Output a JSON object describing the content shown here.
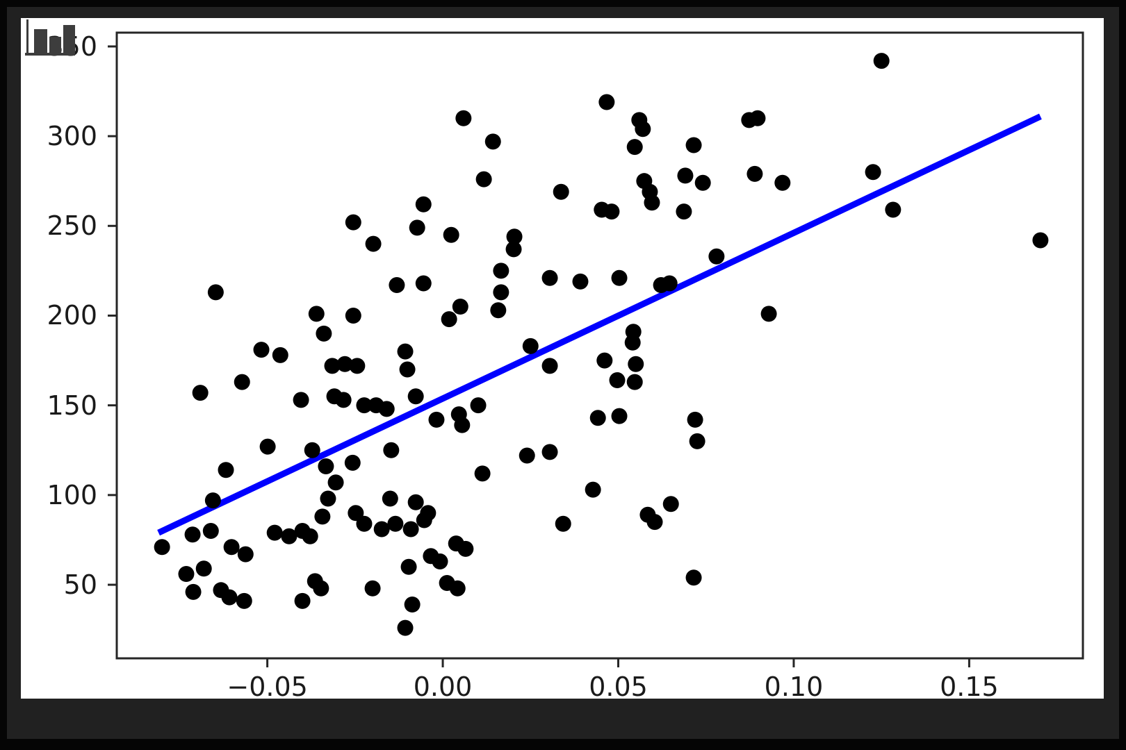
{
  "figure": {
    "icon": "bar-chart-icon",
    "colors": {
      "figure_bg": "#ffffff",
      "surround": "#212121",
      "edge": "#050505",
      "icon": "#3d3d3d",
      "text": "#1a1a1a",
      "spine": "#262626"
    }
  },
  "chart_data": {
    "type": "scatter",
    "title": "",
    "xlabel": "",
    "ylabel": "",
    "grid": false,
    "legend": null,
    "xlim": [
      -0.0929,
      0.1824
    ],
    "ylim": [
      9,
      357.7
    ],
    "x_ticks": [
      -0.05,
      0.0,
      0.05,
      0.1,
      0.15
    ],
    "x_tick_labels": [
      "−0.05",
      "0.00",
      "0.05",
      "0.10",
      "0.15"
    ],
    "y_ticks": [
      350,
      300,
      250,
      200,
      150,
      100,
      50
    ],
    "y_tick_labels": [
      "350",
      "300",
      "250",
      "200",
      "150",
      "100",
      "50"
    ],
    "point_color": "#000000",
    "line_color": "#0000ff",
    "regression_line": {
      "x1": -0.081,
      "y1": 79,
      "x2": 0.1703,
      "y2": 311
    },
    "points": [
      [
        -0.0255,
        252
      ],
      [
        -0.0647,
        213
      ],
      [
        -0.036,
        201
      ],
      [
        -0.0255,
        200
      ],
      [
        -0.0339,
        190
      ],
      [
        -0.0517,
        181
      ],
      [
        0.0059,
        310
      ],
      [
        0.0143,
        297
      ],
      [
        0.0117,
        276
      ],
      [
        -0.0055,
        262
      ],
      [
        0.0337,
        269
      ],
      [
        -0.0073,
        249
      ],
      [
        -0.0198,
        240
      ],
      [
        0.0024,
        245
      ],
      [
        0.0204,
        244
      ],
      [
        0.0202,
        237
      ],
      [
        0.0166,
        225
      ],
      [
        0.0305,
        221
      ],
      [
        0.0392,
        219
      ],
      [
        -0.0131,
        217
      ],
      [
        -0.0055,
        218
      ],
      [
        0.0166,
        213
      ],
      [
        0.0158,
        203
      ],
      [
        0.005,
        205
      ],
      [
        0.0018,
        198
      ],
      [
        0.025,
        183
      ],
      [
        0.0467,
        319
      ],
      [
        0.0453,
        259
      ],
      [
        0.056,
        309
      ],
      [
        0.057,
        304
      ],
      [
        0.0547,
        294
      ],
      [
        0.0873,
        309
      ],
      [
        0.0897,
        310
      ],
      [
        0.0715,
        295
      ],
      [
        0.0889,
        279
      ],
      [
        0.0968,
        274
      ],
      [
        0.0574,
        275
      ],
      [
        0.059,
        269
      ],
      [
        0.0691,
        278
      ],
      [
        0.0741,
        274
      ],
      [
        0.0596,
        263
      ],
      [
        0.0481,
        258
      ],
      [
        0.0687,
        258
      ],
      [
        0.078,
        233
      ],
      [
        0.0503,
        221
      ],
      [
        0.0622,
        217
      ],
      [
        0.0646,
        218
      ],
      [
        0.0543,
        191
      ],
      [
        0.0541,
        185
      ],
      [
        0.0929,
        201
      ],
      [
        0.125,
        342
      ],
      [
        0.1226,
        280
      ],
      [
        0.1283,
        259
      ],
      [
        0.1703,
        242
      ],
      [
        -0.0463,
        178
      ],
      [
        -0.0315,
        172
      ],
      [
        -0.0279,
        173
      ],
      [
        -0.0309,
        155
      ],
      [
        -0.0283,
        153
      ],
      [
        -0.0572,
        163
      ],
      [
        -0.0691,
        157
      ],
      [
        -0.0404,
        153
      ],
      [
        -0.0244,
        172
      ],
      [
        -0.0224,
        150
      ],
      [
        -0.019,
        150
      ],
      [
        -0.016,
        148
      ],
      [
        -0.0499,
        127
      ],
      [
        -0.0372,
        125
      ],
      [
        -0.0618,
        114
      ],
      [
        -0.0333,
        116
      ],
      [
        -0.0305,
        107
      ],
      [
        -0.0327,
        98
      ],
      [
        -0.0343,
        88
      ],
      [
        -0.0655,
        97
      ],
      [
        -0.0713,
        78
      ],
      [
        -0.0661,
        80
      ],
      [
        -0.08,
        71
      ],
      [
        -0.0602,
        71
      ],
      [
        -0.0562,
        67
      ],
      [
        -0.0479,
        79
      ],
      [
        -0.0438,
        77
      ],
      [
        -0.04,
        80
      ],
      [
        -0.0378,
        77
      ],
      [
        -0.0731,
        56
      ],
      [
        -0.0681,
        59
      ],
      [
        -0.0711,
        46
      ],
      [
        -0.0632,
        47
      ],
      [
        -0.0608,
        43
      ],
      [
        -0.0566,
        41
      ],
      [
        -0.0364,
        52
      ],
      [
        -0.0347,
        48
      ],
      [
        -0.04,
        41
      ],
      [
        -0.0107,
        180
      ],
      [
        -0.0101,
        170
      ],
      [
        0.0305,
        172
      ],
      [
        -0.0077,
        155
      ],
      [
        -0.0018,
        142
      ],
      [
        0.0046,
        145
      ],
      [
        0.0055,
        139
      ],
      [
        0.0101,
        150
      ],
      [
        -0.0147,
        125
      ],
      [
        -0.0257,
        118
      ],
      [
        0.0113,
        112
      ],
      [
        0.024,
        122
      ],
      [
        0.0305,
        124
      ],
      [
        0.0428,
        103
      ],
      [
        0.0343,
        84
      ],
      [
        -0.0248,
        90
      ],
      [
        -0.0224,
        84
      ],
      [
        -0.0174,
        81
      ],
      [
        -0.0135,
        84
      ],
      [
        -0.0091,
        81
      ],
      [
        -0.0053,
        86
      ],
      [
        -0.015,
        98
      ],
      [
        -0.0077,
        96
      ],
      [
        -0.0042,
        90
      ],
      [
        -0.0034,
        66
      ],
      [
        -0.0008,
        63
      ],
      [
        0.0038,
        73
      ],
      [
        0.0065,
        70
      ],
      [
        -0.0097,
        60
      ],
      [
        0.0012,
        51
      ],
      [
        0.0042,
        48
      ],
      [
        -0.02,
        48
      ],
      [
        -0.0087,
        39
      ],
      [
        -0.0107,
        26
      ],
      [
        0.0461,
        175
      ],
      [
        0.055,
        173
      ],
      [
        0.0497,
        164
      ],
      [
        0.0547,
        163
      ],
      [
        0.0503,
        144
      ],
      [
        0.0442,
        143
      ],
      [
        0.0719,
        142
      ],
      [
        0.0725,
        130
      ],
      [
        0.065,
        95
      ],
      [
        0.0584,
        89
      ],
      [
        0.0604,
        85
      ],
      [
        0.0715,
        54
      ]
    ]
  }
}
